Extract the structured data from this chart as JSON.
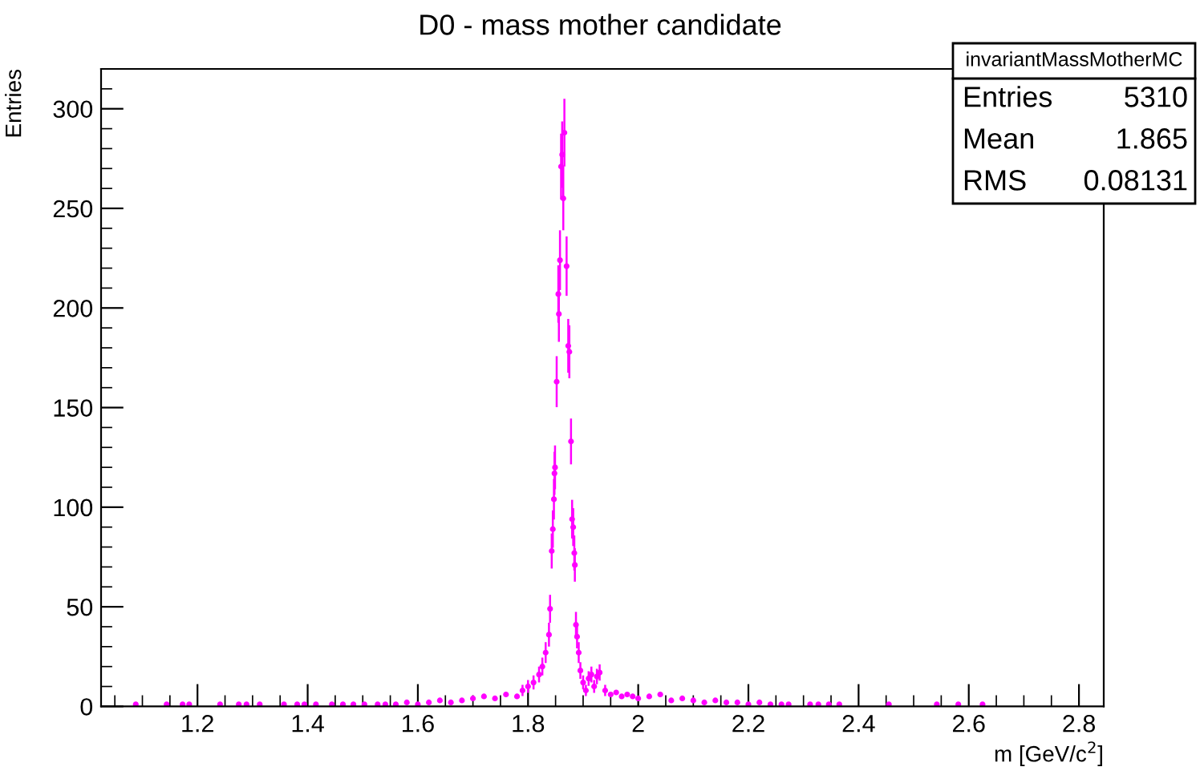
{
  "chart_data": {
    "type": "scatter",
    "title": "D0 - mass mother candidate",
    "xlabel": "m [GeV/c$^{2}$]",
    "ylabel": "Entries",
    "annotations": [
      "invariantMassMotherMC",
      "Entries",
      "5310",
      "Mean",
      "1.865",
      "RMS",
      "0.08131"
    ],
    "xlim": [
      1.025,
      2.845
    ],
    "xticks": [
      1.2,
      1.4,
      1.6,
      1.8,
      2,
      2.2,
      2.4,
      2.6,
      2.8
    ],
    "ylim": [
      0,
      320
    ],
    "yticks": [
      0,
      50,
      100,
      150,
      200,
      250,
      300
    ],
    "grid": false,
    "legend": false,
    "marker": "circle",
    "series": [
      {
        "color": "#ff00ff",
        "x": [
          1.088,
          1.144,
          1.173,
          1.185,
          1.241,
          1.275,
          1.289,
          1.313,
          1.357,
          1.381,
          1.394,
          1.415,
          1.444,
          1.464,
          1.483,
          1.503,
          1.527,
          1.541,
          1.56,
          1.58,
          1.6,
          1.62,
          1.64,
          1.66,
          1.68,
          1.7,
          1.72,
          1.74,
          1.76,
          1.78,
          1.79,
          1.8,
          1.81,
          1.82,
          1.826,
          1.832,
          1.838,
          1.84,
          1.843,
          1.845,
          1.847,
          1.848,
          1.849,
          1.852,
          1.855,
          1.856,
          1.858,
          1.86,
          1.862,
          1.864,
          1.866,
          1.87,
          1.873,
          1.875,
          1.878,
          1.88,
          1.882,
          1.884,
          1.885,
          1.887,
          1.889,
          1.892,
          1.895,
          1.9,
          1.905,
          1.91,
          1.915,
          1.92,
          1.925,
          1.93,
          1.94,
          1.95,
          1.96,
          1.97,
          1.98,
          1.99,
          2.0,
          2.02,
          2.04,
          2.06,
          2.08,
          2.1,
          2.12,
          2.14,
          2.16,
          2.18,
          2.2,
          2.22,
          2.24,
          2.26,
          2.273,
          2.312,
          2.327,
          2.346,
          2.365,
          2.455,
          2.542,
          2.581,
          2.625
        ],
        "values": [
          1,
          1,
          1,
          1,
          1,
          1,
          1,
          1,
          1,
          1,
          1,
          1,
          1,
          1,
          1,
          1,
          1,
          1,
          1,
          2,
          1,
          2,
          3,
          2,
          3,
          4,
          5,
          4,
          6,
          5,
          8,
          10,
          12,
          16,
          20,
          27,
          36,
          49,
          78,
          89,
          104,
          117,
          120,
          163,
          207,
          197,
          224,
          271,
          277,
          255,
          288,
          221,
          181,
          178,
          133,
          94,
          90,
          77,
          71,
          41,
          35,
          27,
          18,
          12,
          8,
          14,
          16,
          10,
          15,
          17,
          8,
          6,
          7,
          5,
          6,
          5,
          4,
          5,
          6,
          3,
          4,
          3,
          2,
          3,
          2,
          2,
          1,
          2,
          1,
          1,
          1,
          1,
          1,
          1,
          1,
          1,
          1,
          1,
          1
        ],
        "errors": [
          null,
          null,
          null,
          null,
          null,
          null,
          null,
          null,
          null,
          null,
          null,
          null,
          null,
          null,
          null,
          null,
          null,
          null,
          null,
          null,
          null,
          null,
          null,
          null,
          null,
          null,
          null,
          null,
          null,
          null,
          2.8,
          3.2,
          3.5,
          4,
          4.5,
          5.2,
          6,
          7,
          8.8,
          9.4,
          10.2,
          10.8,
          11,
          12.8,
          14.4,
          14,
          15,
          16.5,
          16.6,
          16,
          17,
          14.9,
          13.5,
          13.3,
          11.5,
          9.7,
          9.5,
          8.8,
          8.4,
          6.4,
          5.9,
          5.2,
          4.2,
          3.5,
          2.8,
          3.7,
          4,
          3.2,
          3.9,
          4.1,
          2.8,
          null,
          null,
          null,
          null,
          null,
          null,
          null,
          null,
          null,
          null,
          null,
          null,
          null,
          null,
          null,
          null,
          null,
          null,
          null,
          null,
          null,
          null,
          null,
          null,
          null,
          null,
          null,
          null
        ]
      }
    ]
  }
}
